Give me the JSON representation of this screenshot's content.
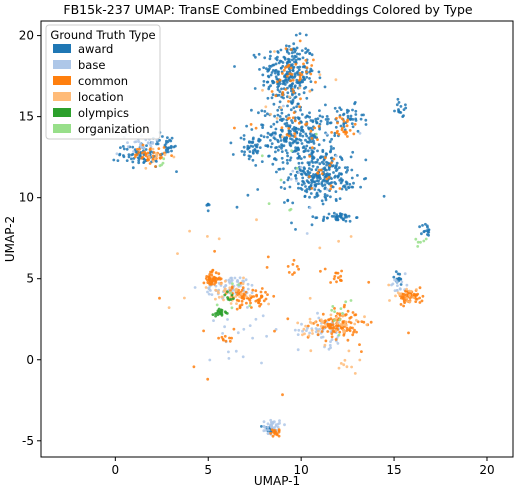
{
  "chart_data": {
    "type": "scatter",
    "title": "FB15k-237 UMAP: TransE Combined Embeddings Colored by Type",
    "xlabel": "UMAP-1",
    "ylabel": "UMAP-2",
    "xlim": [
      -4.0,
      21.4
    ],
    "ylim": [
      -6.0,
      20.9
    ],
    "xticks": [
      0,
      5,
      10,
      15,
      20
    ],
    "yticks": [
      -5,
      0,
      5,
      10,
      15,
      20
    ],
    "grid": false,
    "legend": {
      "title": "Ground Truth Type",
      "placement": "top-left",
      "entries": [
        {
          "name": "award",
          "color": "#1f77b4"
        },
        {
          "name": "base",
          "color": "#aec7e8"
        },
        {
          "name": "common",
          "color": "#ff7f0e"
        },
        {
          "name": "location",
          "color": "#ffbb78"
        },
        {
          "name": "olympics",
          "color": "#2ca02c"
        },
        {
          "name": "organization",
          "color": "#98df8a"
        }
      ]
    },
    "series": [
      {
        "name": "award",
        "color": "#1f77b4",
        "clusters": [
          {
            "cx": 9.3,
            "cy": 17.6,
            "rx": 1.3,
            "ry": 1.9,
            "n": 260
          },
          {
            "cx": 9.7,
            "cy": 13.8,
            "rx": 2.0,
            "ry": 1.6,
            "n": 280
          },
          {
            "cx": 11.0,
            "cy": 11.3,
            "rx": 1.5,
            "ry": 1.4,
            "n": 240
          },
          {
            "cx": 12.5,
            "cy": 14.8,
            "rx": 0.8,
            "ry": 0.8,
            "n": 40
          },
          {
            "cx": 7.2,
            "cy": 13.0,
            "rx": 0.7,
            "ry": 0.7,
            "n": 30
          },
          {
            "cx": 1.4,
            "cy": 12.7,
            "rx": 1.1,
            "ry": 0.7,
            "n": 70
          },
          {
            "cx": 2.8,
            "cy": 13.3,
            "rx": 0.6,
            "ry": 0.5,
            "n": 25
          },
          {
            "cx": 12.0,
            "cy": 8.8,
            "rx": 0.8,
            "ry": 0.25,
            "n": 40
          },
          {
            "cx": 16.7,
            "cy": 7.9,
            "rx": 0.25,
            "ry": 0.5,
            "n": 15
          },
          {
            "cx": 15.4,
            "cy": 15.5,
            "rx": 0.3,
            "ry": 0.5,
            "n": 15
          },
          {
            "cx": 8.3,
            "cy": -4.3,
            "rx": 0.4,
            "ry": 0.3,
            "n": 15
          },
          {
            "cx": 15.2,
            "cy": 5.0,
            "rx": 0.3,
            "ry": 0.4,
            "n": 15
          },
          {
            "cx": 5.0,
            "cy": 9.4,
            "rx": 0.1,
            "ry": 0.3,
            "n": 6
          },
          {
            "cx": 12.6,
            "cy": 11.0,
            "rx": 0.5,
            "ry": 0.5,
            "n": 10
          },
          {
            "cx": 10.0,
            "cy": 12.0,
            "rx": 5.0,
            "ry": 4.0,
            "n": 25
          }
        ]
      },
      {
        "name": "base",
        "color": "#aec7e8",
        "clusters": [
          {
            "cx": 6.2,
            "cy": 4.5,
            "rx": 1.3,
            "ry": 0.6,
            "n": 70
          },
          {
            "cx": 11.3,
            "cy": 1.8,
            "rx": 1.3,
            "ry": 0.9,
            "n": 50
          },
          {
            "cx": 8.4,
            "cy": -4.1,
            "rx": 0.4,
            "ry": 0.4,
            "n": 40
          },
          {
            "cx": 1.5,
            "cy": 13.4,
            "rx": 0.8,
            "ry": 0.6,
            "n": 30
          },
          {
            "cx": 15.3,
            "cy": 4.6,
            "rx": 0.5,
            "ry": 0.5,
            "n": 15
          },
          {
            "cx": 7.0,
            "cy": 2.0,
            "rx": 2.0,
            "ry": 1.5,
            "n": 20
          },
          {
            "cx": 10.5,
            "cy": 11.0,
            "rx": 2.5,
            "ry": 4.0,
            "n": 15
          }
        ]
      },
      {
        "name": "common",
        "color": "#ff7f0e",
        "clusters": [
          {
            "cx": 5.2,
            "cy": 5.0,
            "rx": 0.4,
            "ry": 0.4,
            "n": 50
          },
          {
            "cx": 6.7,
            "cy": 3.9,
            "rx": 0.6,
            "ry": 0.6,
            "n": 40
          },
          {
            "cx": 7.7,
            "cy": 3.8,
            "rx": 0.5,
            "ry": 0.6,
            "n": 30
          },
          {
            "cx": 12.0,
            "cy": 2.2,
            "rx": 1.0,
            "ry": 0.8,
            "n": 110
          },
          {
            "cx": 15.9,
            "cy": 3.9,
            "rx": 0.6,
            "ry": 0.4,
            "n": 60
          },
          {
            "cx": 1.9,
            "cy": 12.6,
            "rx": 0.8,
            "ry": 0.5,
            "n": 40
          },
          {
            "cx": 8.6,
            "cy": -4.5,
            "rx": 0.3,
            "ry": 0.2,
            "n": 15
          },
          {
            "cx": 9.6,
            "cy": 17.7,
            "rx": 1.0,
            "ry": 1.5,
            "n": 40
          },
          {
            "cx": 9.7,
            "cy": 14.5,
            "rx": 2.0,
            "ry": 1.5,
            "n": 30
          },
          {
            "cx": 12.4,
            "cy": 14.3,
            "rx": 0.6,
            "ry": 0.7,
            "n": 20
          },
          {
            "cx": 5.9,
            "cy": 1.3,
            "rx": 0.3,
            "ry": 0.2,
            "n": 8
          },
          {
            "cx": 11.7,
            "cy": 5.2,
            "rx": 0.6,
            "ry": 0.5,
            "n": 15
          },
          {
            "cx": 9.6,
            "cy": 5.5,
            "rx": 0.3,
            "ry": 0.4,
            "n": 8
          },
          {
            "cx": 11.3,
            "cy": 11.5,
            "rx": 1.0,
            "ry": 1.0,
            "n": 15
          },
          {
            "cx": 8.5,
            "cy": 3.0,
            "rx": 6.0,
            "ry": 4.0,
            "n": 20
          }
        ]
      },
      {
        "name": "location",
        "color": "#ffbb78",
        "clusters": [
          {
            "cx": 6.2,
            "cy": 4.1,
            "rx": 1.2,
            "ry": 1.0,
            "n": 30
          },
          {
            "cx": 11.5,
            "cy": 2.0,
            "rx": 1.5,
            "ry": 1.0,
            "n": 40
          },
          {
            "cx": 15.6,
            "cy": 4.0,
            "rx": 0.8,
            "ry": 0.6,
            "n": 15
          },
          {
            "cx": 2.0,
            "cy": 12.4,
            "rx": 0.8,
            "ry": 0.6,
            "n": 10
          },
          {
            "cx": 9.5,
            "cy": 16.0,
            "rx": 1.5,
            "ry": 2.0,
            "n": 12
          },
          {
            "cx": 12.5,
            "cy": -0.3,
            "rx": 0.6,
            "ry": 0.5,
            "n": 8
          },
          {
            "cx": 8.0,
            "cy": 6.0,
            "rx": 6.0,
            "ry": 5.0,
            "n": 15
          }
        ]
      },
      {
        "name": "olympics",
        "color": "#2ca02c",
        "clusters": [
          {
            "cx": 5.7,
            "cy": 2.9,
            "rx": 0.35,
            "ry": 0.25,
            "n": 20
          },
          {
            "cx": 6.1,
            "cy": 3.9,
            "rx": 0.2,
            "ry": 0.3,
            "n": 8
          }
        ]
      },
      {
        "name": "organization",
        "color": "#98df8a",
        "clusters": [
          {
            "cx": 12.0,
            "cy": 2.8,
            "rx": 0.8,
            "ry": 0.8,
            "n": 10
          },
          {
            "cx": 16.4,
            "cy": 7.4,
            "rx": 0.3,
            "ry": 0.3,
            "n": 6
          },
          {
            "cx": 10.0,
            "cy": 12.0,
            "rx": 2.0,
            "ry": 3.0,
            "n": 8
          },
          {
            "cx": 2.5,
            "cy": 12.0,
            "rx": 0.6,
            "ry": 0.5,
            "n": 4
          },
          {
            "cx": 6.5,
            "cy": 4.0,
            "rx": 1.0,
            "ry": 1.0,
            "n": 6
          }
        ]
      }
    ]
  }
}
